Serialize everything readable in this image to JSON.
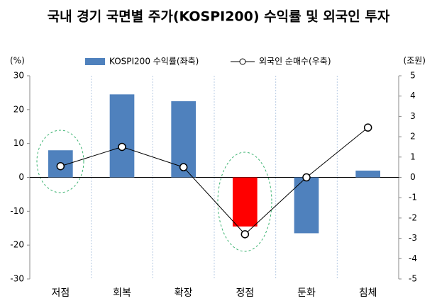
{
  "chart_data": {
    "type": "bar",
    "title": "국내 경기 국면별 주가(KOSPI200) 수익률 및 외국인 투자",
    "y_label": "(%)",
    "y2_label": "(조원)",
    "categories": [
      "저점",
      "회복",
      "확장",
      "정점",
      "둔화",
      "침체"
    ],
    "series": [
      {
        "name": "KOSPI200 수익률(좌축)",
        "type": "bar",
        "color": "#4f81bd",
        "colors": [
          "#4f81bd",
          "#4f81bd",
          "#4f81bd",
          "#ff0000",
          "#4f81bd",
          "#4f81bd"
        ],
        "values": [
          8,
          24.5,
          22.5,
          -14.5,
          -16.5,
          2
        ]
      },
      {
        "name": "외국인 순매수(우축)",
        "type": "line",
        "axis": "y2",
        "color": "#000000",
        "values": [
          0.55,
          1.5,
          0.5,
          -2.8,
          0,
          2.45
        ]
      }
    ],
    "ylim": [
      -30,
      30
    ],
    "yticks": [
      -30,
      -20,
      -10,
      0,
      10,
      20,
      30
    ],
    "y2lim": [
      -5,
      5
    ],
    "y2ticks": [
      -5,
      -4,
      -3,
      -2,
      -1,
      0,
      1,
      2,
      3,
      4,
      5
    ]
  }
}
